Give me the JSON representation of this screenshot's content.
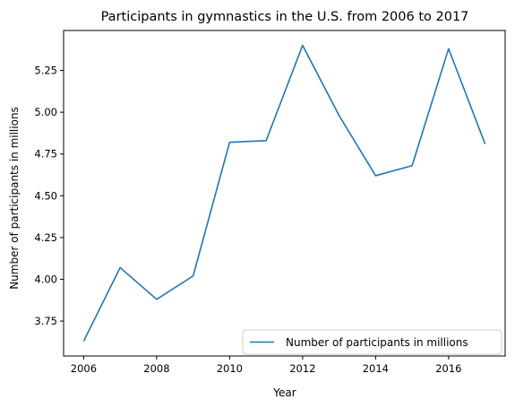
{
  "chart_data": {
    "type": "line",
    "title": "Participants in gymnastics in the U.S. from 2006 to 2017",
    "xlabel": "Year",
    "ylabel": "Number of participants in millions",
    "x": [
      2006,
      2007,
      2008,
      2009,
      2010,
      2011,
      2012,
      2013,
      2014,
      2015,
      2016,
      2017
    ],
    "series": [
      {
        "name": "Number of participants in millions",
        "values": [
          3.63,
          4.07,
          3.88,
          4.02,
          4.82,
          4.83,
          5.4,
          4.98,
          4.62,
          4.68,
          5.38,
          4.81
        ],
        "color": "#1f77b4"
      }
    ],
    "xlim": [
      2005.45,
      2017.55
    ],
    "ylim": [
      3.541,
      5.489
    ],
    "xticks": [
      2006,
      2008,
      2010,
      2012,
      2014,
      2016
    ],
    "xtick_labels": [
      "2006",
      "2008",
      "2010",
      "2012",
      "2014",
      "2016"
    ],
    "yticks": [
      3.75,
      4.0,
      4.25,
      4.5,
      4.75,
      5.0,
      5.25
    ],
    "ytick_labels": [
      "3.75",
      "4.00",
      "4.25",
      "4.50",
      "4.75",
      "5.00",
      "5.25"
    ],
    "grid": false,
    "legend_position": "lower-right"
  }
}
